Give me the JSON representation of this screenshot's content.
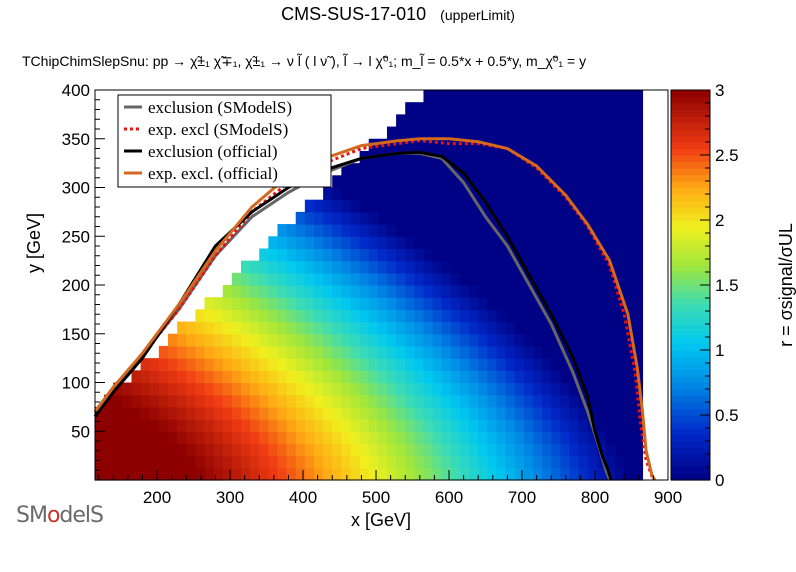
{
  "title": "CMS-SUS-17-010",
  "title_tag": "(upperLimit)",
  "subtitle": "TChipChimSlepSnu: pp → χ̃±₁ χ̃∓₁, χ̃±₁ → ν l̃ ( l ν̃ ), l̃ → l χ̃⁰₁; m_l̃ = 0.5*x + 0.5*y, m_χ̃⁰₁ = y",
  "logo_text": "SModelS",
  "colors": {
    "exclusion_smodels": "#666666",
    "exp_excl_smodels": "#e8120f",
    "exclusion_official": "#000000",
    "exp_excl_official": "#d2691e"
  },
  "chart_data": {
    "type": "heatmap",
    "xlabel": "x [GeV]",
    "ylabel": "y [GeV]",
    "zlabel": "r = σsignal/σUL",
    "xlim": [
      115,
      900
    ],
    "ylim": [
      0,
      400
    ],
    "zlim": [
      0,
      3
    ],
    "xticks": [
      "200",
      "300",
      "400",
      "500",
      "600",
      "700",
      "800",
      "900"
    ],
    "yticks": [
      "50",
      "100",
      "150",
      "200",
      "250",
      "300",
      "350",
      "400"
    ],
    "zticks": [
      "0",
      "0.5",
      "1",
      "1.5",
      "2",
      "2.5",
      "3"
    ],
    "legend_position": "top-left",
    "grid": false,
    "series": [
      {
        "name": "exclusion (SModelS)",
        "style": "solid",
        "color": "#666666",
        "x": [
          115,
          140,
          180,
          230,
          280,
          330,
          380,
          430,
          480,
          530,
          560,
          590,
          620,
          650,
          680,
          710,
          740,
          770,
          790,
          805,
          815,
          820
        ],
        "y": [
          70,
          95,
          128,
          175,
          230,
          270,
          295,
          315,
          330,
          335,
          335,
          330,
          305,
          270,
          240,
          200,
          160,
          110,
          70,
          35,
          10,
          0
        ]
      },
      {
        "name": "exp. excl (SModelS)",
        "style": "dotted",
        "color": "#e8120f",
        "x": [
          115,
          140,
          180,
          230,
          280,
          330,
          380,
          430,
          480,
          530,
          560,
          600,
          640,
          680,
          720,
          760,
          790,
          820,
          840,
          855,
          862,
          870,
          880
        ],
        "y": [
          70,
          95,
          128,
          175,
          230,
          275,
          305,
          325,
          340,
          345,
          348,
          345,
          345,
          340,
          320,
          290,
          260,
          220,
          170,
          110,
          60,
          20,
          0
        ]
      },
      {
        "name": "exclusion (official)",
        "style": "solid",
        "color": "#000000",
        "x": [
          115,
          140,
          180,
          230,
          280,
          330,
          380,
          430,
          480,
          530,
          560,
          590,
          620,
          650,
          680,
          710,
          740,
          770,
          790,
          800,
          810,
          818,
          822
        ],
        "y": [
          65,
          90,
          125,
          180,
          240,
          275,
          300,
          318,
          330,
          335,
          336,
          332,
          315,
          285,
          250,
          210,
          170,
          125,
          85,
          50,
          25,
          10,
          0
        ]
      },
      {
        "name": "exp. excl. (official)",
        "style": "solid",
        "color": "#d2691e",
        "x": [
          115,
          140,
          180,
          230,
          280,
          330,
          380,
          430,
          480,
          530,
          560,
          600,
          640,
          680,
          720,
          760,
          790,
          820,
          845,
          858,
          865,
          870,
          878,
          882
        ],
        "y": [
          70,
          95,
          130,
          180,
          235,
          280,
          312,
          330,
          343,
          348,
          350,
          350,
          347,
          340,
          322,
          292,
          262,
          225,
          170,
          115,
          70,
          30,
          5,
          0
        ]
      }
    ]
  }
}
